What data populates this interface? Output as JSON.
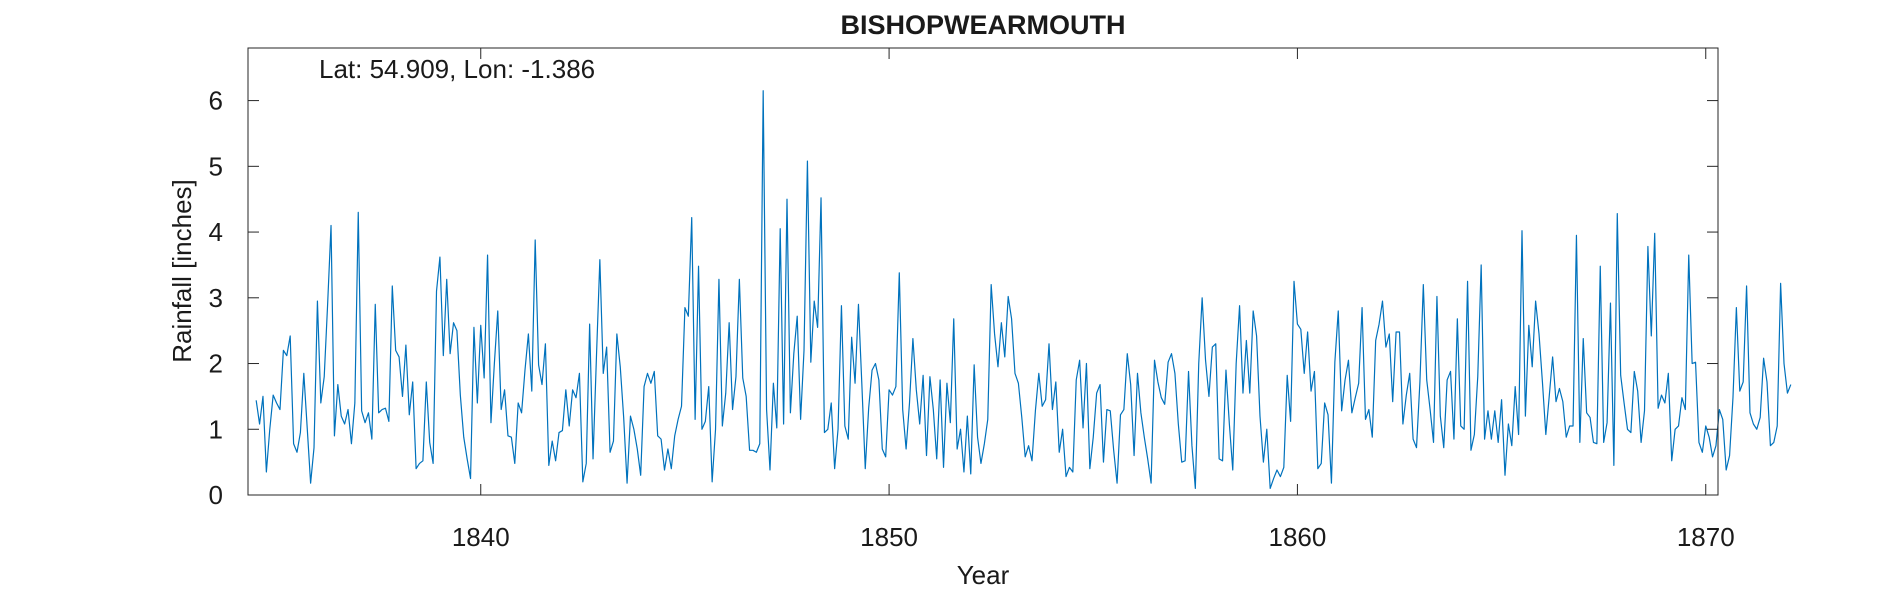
{
  "chart_data": {
    "type": "line",
    "title": "BISHOPWEARMOUTH",
    "annotation": "Lat: 54.909, Lon: -1.386",
    "xlabel": "Year",
    "ylabel": "Rainfall [inches]",
    "xlim": [
      1834.3,
      1870.3
    ],
    "ylim": [
      0,
      6.8
    ],
    "xticks": [
      1840,
      1850,
      1860,
      1870
    ],
    "xtick_labels": [
      "1840",
      "1850",
      "1860",
      "1870"
    ],
    "yticks": [
      0,
      1,
      2,
      3,
      4,
      5,
      6
    ],
    "ytick_labels": [
      "0",
      "1",
      "2",
      "3",
      "4",
      "5",
      "6"
    ],
    "grid": false,
    "box": true,
    "x_start": 1834.5,
    "x_step": 0.0833333,
    "series": [
      {
        "color": "#0072BD",
        "values": [
          1.44,
          1.08,
          1.5,
          0.35,
          1.0,
          1.52,
          1.4,
          1.3,
          2.2,
          2.12,
          2.42,
          0.78,
          0.65,
          0.95,
          1.85,
          1.02,
          0.18,
          0.72,
          2.95,
          1.4,
          1.8,
          2.9,
          4.1,
          0.9,
          1.68,
          1.2,
          1.08,
          1.3,
          0.78,
          1.4,
          4.3,
          1.28,
          1.1,
          1.25,
          0.85,
          2.9,
          1.25,
          1.3,
          1.32,
          1.12,
          3.18,
          2.2,
          2.1,
          1.5,
          2.28,
          1.22,
          1.72,
          0.4,
          0.48,
          0.52,
          1.72,
          0.8,
          0.48,
          3.1,
          3.62,
          2.12,
          3.28,
          2.15,
          2.62,
          2.5,
          1.52,
          0.88,
          0.55,
          0.25,
          2.55,
          1.4,
          2.58,
          1.78,
          3.65,
          1.1,
          2.0,
          2.8,
          1.3,
          1.6,
          0.9,
          0.88,
          0.48,
          1.4,
          1.25,
          1.9,
          2.45,
          1.58,
          3.88,
          1.98,
          1.68,
          2.3,
          0.45,
          0.82,
          0.52,
          0.95,
          0.98,
          1.6,
          1.05,
          1.6,
          1.48,
          1.85,
          0.2,
          0.48,
          2.6,
          0.55,
          2.1,
          3.58,
          1.85,
          2.25,
          0.65,
          0.82,
          2.45,
          1.95,
          1.18,
          0.18,
          1.2,
          1.0,
          0.7,
          0.3,
          1.65,
          1.85,
          1.7,
          1.88,
          0.9,
          0.85,
          0.38,
          0.7,
          0.4,
          0.9,
          1.15,
          1.35,
          2.85,
          2.72,
          4.22,
          1.15,
          3.48,
          1.0,
          1.12,
          1.65,
          0.2,
          1.0,
          3.28,
          1.05,
          1.55,
          2.62,
          1.3,
          1.8,
          3.28,
          1.78,
          1.5,
          0.68,
          0.68,
          0.65,
          0.78,
          6.15,
          1.3,
          0.38,
          1.7,
          1.02,
          4.05,
          1.08,
          4.5,
          1.25,
          2.15,
          2.72,
          1.15,
          2.2,
          5.08,
          2.02,
          2.95,
          2.55,
          4.52,
          0.95,
          1.0,
          1.4,
          0.4,
          1.0,
          2.88,
          1.05,
          0.85,
          2.4,
          1.7,
          2.9,
          1.68,
          0.4,
          1.32,
          1.9,
          2.0,
          1.75,
          0.7,
          0.58,
          1.6,
          1.52,
          1.65,
          3.38,
          1.3,
          0.7,
          1.4,
          2.38,
          1.6,
          1.08,
          1.82,
          0.6,
          1.8,
          1.3,
          0.55,
          1.75,
          0.42,
          1.7,
          1.1,
          2.68,
          0.7,
          1.0,
          0.35,
          1.2,
          0.32,
          1.98,
          0.88,
          0.48,
          0.78,
          1.15,
          3.2,
          2.45,
          1.95,
          2.62,
          2.1,
          3.02,
          2.68,
          1.85,
          1.7,
          1.18,
          0.58,
          0.75,
          0.52,
          1.28,
          1.85,
          1.35,
          1.45,
          2.3,
          1.3,
          1.72,
          0.65,
          1.0,
          0.28,
          0.42,
          0.35,
          1.75,
          2.05,
          1.02,
          2.0,
          0.4,
          0.88,
          1.55,
          1.68,
          0.5,
          1.3,
          1.28,
          0.68,
          0.18,
          1.22,
          1.3,
          2.15,
          1.68,
          0.6,
          1.85,
          1.25,
          0.88,
          0.55,
          0.18,
          2.05,
          1.72,
          1.48,
          1.38,
          2.02,
          2.15,
          1.85,
          1.08,
          0.5,
          0.52,
          1.88,
          0.75,
          0.1,
          2.0,
          3.0,
          2.05,
          1.5,
          2.25,
          2.3,
          0.55,
          0.52,
          1.9,
          1.08,
          0.38,
          2.0,
          2.88,
          1.55,
          2.35,
          1.55,
          2.8,
          2.42,
          1.2,
          0.5,
          1.0,
          0.1,
          0.25,
          0.38,
          0.28,
          0.42,
          1.82,
          1.12,
          3.25,
          2.6,
          2.52,
          1.85,
          2.48,
          1.58,
          1.88,
          0.4,
          0.48,
          1.4,
          1.22,
          0.18,
          2.02,
          2.8,
          1.28,
          1.75,
          2.05,
          1.25,
          1.48,
          1.7,
          2.85,
          1.15,
          1.3,
          0.88,
          2.35,
          2.6,
          2.95,
          2.25,
          2.45,
          1.42,
          2.48,
          2.48,
          1.08,
          1.52,
          1.85,
          0.85,
          0.72,
          1.72,
          3.2,
          1.75,
          1.3,
          0.8,
          3.02,
          1.2,
          0.72,
          1.75,
          1.88,
          0.85,
          2.68,
          1.05,
          1.0,
          3.25,
          0.68,
          0.92,
          1.8,
          3.5,
          0.85,
          1.28,
          0.85,
          1.28,
          0.8,
          1.45,
          0.3,
          1.08,
          0.75,
          1.65,
          0.92,
          4.02,
          1.2,
          2.58,
          1.95,
          2.95,
          2.45,
          1.72,
          0.92,
          1.5,
          2.1,
          1.42,
          1.62,
          1.42,
          0.88,
          1.05,
          1.05,
          3.95,
          0.8,
          2.38,
          1.25,
          1.18,
          0.8,
          0.78,
          3.48,
          0.8,
          1.1,
          2.92,
          0.45,
          4.28,
          1.82,
          1.4,
          1.0,
          0.95,
          1.88,
          1.58,
          0.8,
          1.28,
          3.78,
          2.42,
          3.98,
          1.32,
          1.52,
          1.4,
          1.85,
          0.52,
          1.0,
          1.05,
          1.48,
          1.3,
          3.65,
          2.0,
          2.02,
          0.8,
          0.65,
          1.05,
          0.88,
          0.58,
          0.75,
          1.3,
          1.15,
          0.38,
          0.6,
          1.48,
          2.85,
          1.58,
          1.72,
          3.18,
          1.25,
          1.08,
          1.0,
          1.18,
          2.08,
          1.72,
          0.75,
          0.8,
          1.05,
          3.22,
          2.0,
          1.55,
          1.68
        ]
      }
    ]
  }
}
